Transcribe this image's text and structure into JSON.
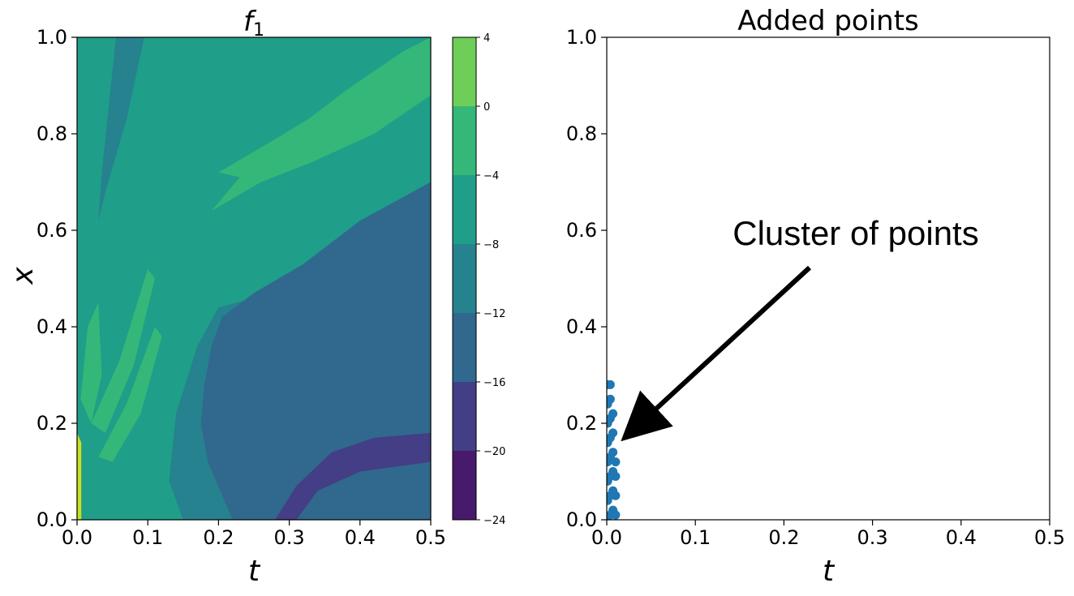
{
  "chart_data": [
    {
      "type": "heatmap",
      "subtype": "filled-contour",
      "title": "f",
      "title_subscript": "1",
      "xlabel": "t",
      "ylabel": "x",
      "xlim": [
        0.0,
        0.5
      ],
      "ylim": [
        0.0,
        1.0
      ],
      "x_ticks": [
        "0.0",
        "0.1",
        "0.2",
        "0.3",
        "0.4",
        "0.5"
      ],
      "y_ticks": [
        "0.0",
        "0.2",
        "0.4",
        "0.6",
        "0.8",
        "1.0"
      ],
      "colorbar": {
        "levels": [
          -24,
          -20,
          -16,
          -12,
          -8,
          -4,
          0,
          4
        ],
        "labels": [
          "−24",
          "−20",
          "−16",
          "−12",
          "−8",
          "−4",
          "0",
          "4"
        ],
        "colors": [
          "#481a6c",
          "#433e85",
          "#31688e",
          "#26828e",
          "#1f9e89",
          "#35b779",
          "#6ece58",
          "#cae11f"
        ]
      },
      "regions": [
        {
          "name": "background",
          "band": 4
        },
        {
          "name": "lower-right-wedge",
          "band": 3,
          "points": [
            [
              0.15,
              0.0
            ],
            [
              0.5,
              0.0
            ],
            [
              0.5,
              0.69
            ],
            [
              0.33,
              0.52
            ],
            [
              0.25,
              0.46
            ],
            [
              0.2,
              0.44
            ],
            [
              0.17,
              0.36
            ],
            [
              0.14,
              0.22
            ],
            [
              0.13,
              0.08
            ]
          ]
        },
        {
          "name": "main-dark-basin",
          "band": 2,
          "points": [
            [
              0.255,
              0.0
            ],
            [
              0.5,
              0.0
            ],
            [
              0.5,
              0.7
            ],
            [
              0.4,
              0.62
            ],
            [
              0.32,
              0.53
            ],
            [
              0.25,
              0.47
            ],
            [
              0.205,
              0.42
            ],
            [
              0.19,
              0.36
            ],
            [
              0.18,
              0.28
            ],
            [
              0.175,
              0.2
            ],
            [
              0.185,
              0.12
            ],
            [
              0.22,
              0.0
            ]
          ]
        },
        {
          "name": "upper-left-ridge",
          "band": 3,
          "points": [
            [
              0.055,
              1.0
            ],
            [
              0.095,
              1.0
            ],
            [
              0.07,
              0.83
            ],
            [
              0.04,
              0.68
            ],
            [
              0.03,
              0.62
            ],
            [
              0.035,
              0.72
            ]
          ]
        },
        {
          "name": "bottom-arc",
          "band": 1,
          "points": [
            [
              0.28,
              0.0
            ],
            [
              0.31,
              0.0
            ],
            [
              0.34,
              0.06
            ],
            [
              0.4,
              0.1
            ],
            [
              0.5,
              0.12
            ],
            [
              0.5,
              0.18
            ],
            [
              0.42,
              0.17
            ],
            [
              0.36,
              0.14
            ],
            [
              0.31,
              0.07
            ]
          ]
        },
        {
          "name": "upper-right-lobe-1",
          "band": 5,
          "points": [
            [
              0.19,
              0.64
            ],
            [
              0.26,
              0.7
            ],
            [
              0.35,
              0.78
            ],
            [
              0.45,
              0.88
            ],
            [
              0.5,
              0.92
            ],
            [
              0.5,
              1.0
            ],
            [
              0.46,
              0.97
            ],
            [
              0.38,
              0.89
            ],
            [
              0.3,
              0.8
            ],
            [
              0.23,
              0.71
            ]
          ]
        },
        {
          "name": "upper-right-lobe-2",
          "band": 5,
          "points": [
            [
              0.2,
              0.72
            ],
            [
              0.27,
              0.78
            ],
            [
              0.36,
              0.86
            ],
            [
              0.46,
              0.93
            ],
            [
              0.5,
              0.96
            ],
            [
              0.5,
              0.88
            ],
            [
              0.42,
              0.8
            ],
            [
              0.33,
              0.74
            ],
            [
              0.26,
              0.7
            ]
          ]
        },
        {
          "name": "left-lobe-1",
          "band": 5,
          "points": [
            [
              0.005,
              0.25
            ],
            [
              0.015,
              0.4
            ],
            [
              0.03,
              0.45
            ],
            [
              0.035,
              0.3
            ],
            [
              0.02,
              0.2
            ]
          ]
        },
        {
          "name": "left-lobe-2",
          "band": 5,
          "points": [
            [
              0.02,
              0.2
            ],
            [
              0.06,
              0.33
            ],
            [
              0.1,
              0.52
            ],
            [
              0.11,
              0.5
            ],
            [
              0.08,
              0.32
            ],
            [
              0.04,
              0.18
            ]
          ]
        },
        {
          "name": "left-lobe-3",
          "band": 5,
          "points": [
            [
              0.03,
              0.13
            ],
            [
              0.07,
              0.24
            ],
            [
              0.11,
              0.4
            ],
            [
              0.12,
              0.38
            ],
            [
              0.09,
              0.22
            ],
            [
              0.05,
              0.12
            ]
          ]
        },
        {
          "name": "left-edge-strip",
          "band": 7,
          "points": [
            [
              0.0,
              0.0
            ],
            [
              0.006,
              0.0
            ],
            [
              0.006,
              0.16
            ],
            [
              0.0,
              0.18
            ]
          ]
        }
      ]
    },
    {
      "type": "scatter",
      "title": "Added points",
      "xlabel": "t",
      "ylabel": "",
      "xlim": [
        0.0,
        0.5
      ],
      "ylim": [
        0.0,
        1.0
      ],
      "x_ticks": [
        "0.0",
        "0.1",
        "0.2",
        "0.3",
        "0.4",
        "0.5"
      ],
      "y_ticks": [
        "0.0",
        "0.2",
        "0.4",
        "0.6",
        "0.8",
        "1.0"
      ],
      "point_color": "#1f77b4",
      "points": [
        [
          0.001,
          0.0
        ],
        [
          0.001,
          0.04
        ],
        [
          0.001,
          0.08
        ],
        [
          0.001,
          0.12
        ],
        [
          0.001,
          0.16
        ],
        [
          0.001,
          0.2
        ],
        [
          0.001,
          0.24
        ],
        [
          0.001,
          0.28
        ],
        [
          0.004,
          0.01
        ],
        [
          0.004,
          0.05
        ],
        [
          0.004,
          0.09
        ],
        [
          0.004,
          0.13
        ],
        [
          0.004,
          0.17
        ],
        [
          0.004,
          0.21
        ],
        [
          0.004,
          0.25
        ],
        [
          0.004,
          0.28
        ],
        [
          0.007,
          0.02
        ],
        [
          0.007,
          0.06
        ],
        [
          0.007,
          0.1
        ],
        [
          0.007,
          0.14
        ],
        [
          0.007,
          0.18
        ],
        [
          0.007,
          0.22
        ],
        [
          0.01,
          0.01
        ],
        [
          0.01,
          0.05
        ],
        [
          0.01,
          0.09
        ],
        [
          0.01,
          0.12
        ]
      ],
      "annotation": {
        "text": "Cluster of points",
        "target": [
          0.032,
          0.19
        ]
      }
    }
  ]
}
